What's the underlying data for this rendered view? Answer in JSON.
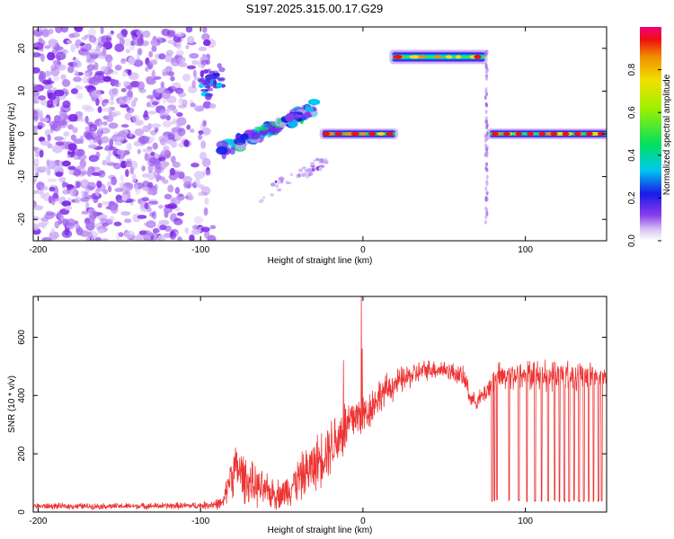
{
  "title": "S197.2025.315.00.17.G29",
  "chart_data": [
    {
      "id": "spectrogram",
      "type": "heatmap",
      "xlabel": "Height of straight line (km)",
      "ylabel": "Frequency (Hz)",
      "xlim": [
        -203,
        150
      ],
      "ylim": [
        -25,
        25
      ],
      "xticks": [
        -200,
        -100,
        0,
        100
      ],
      "xtick_labels": [
        "-200",
        "-100",
        "0",
        "100"
      ],
      "yticks": [
        -20,
        -10,
        0,
        10,
        20
      ],
      "ytick_labels": [
        "-20",
        "-10",
        "0",
        "10",
        "20"
      ],
      "colorbar": {
        "label": "Normalized spectral amplitude",
        "range": [
          0,
          1
        ],
        "ticks": [
          0.0,
          0.2,
          0.4,
          0.6,
          0.8
        ],
        "tick_labels": [
          "0.0",
          "0.2",
          "0.4",
          "0.6",
          "0.8"
        ]
      },
      "features": [
        {
          "name": "noise-scatter",
          "x": [
            -203,
            -92
          ],
          "freq": [
            -25,
            25
          ],
          "amplitude": 0.12
        },
        {
          "name": "cluster-upper",
          "x": [
            -100,
            -86
          ],
          "freq": [
            10,
            16
          ],
          "amplitude": 0.35
        },
        {
          "name": "descending-blobs",
          "x": [
            -88,
            -30
          ],
          "freq": [
            -6,
            8
          ],
          "amplitude": 0.5
        },
        {
          "name": "faint-tail-lower",
          "x": [
            -65,
            -22
          ],
          "freq": [
            -15,
            -6
          ],
          "amplitude": 0.15
        },
        {
          "name": "low-band",
          "x": [
            -25,
            20
          ],
          "freq": 0,
          "amplitude": 0.9
        },
        {
          "name": "high-band",
          "x": [
            18,
            75
          ],
          "freq": 18,
          "amplitude": 0.95
        },
        {
          "name": "vertical-streak",
          "x": [
            76,
            77
          ],
          "freq": [
            -23,
            20
          ],
          "amplitude": 0.12
        },
        {
          "name": "right-band",
          "x": [
            78,
            150
          ],
          "freq": 0,
          "amplitude": 0.95
        }
      ]
    },
    {
      "id": "snr",
      "type": "line",
      "xlabel": "Height of straight line (km)",
      "ylabel": "SNR (10 * v/v)",
      "xlim": [
        -203,
        150
      ],
      "ylim": [
        0,
        740
      ],
      "xticks": [
        -200,
        -100,
        0,
        100
      ],
      "xtick_labels": [
        "-200",
        "-100",
        "0",
        "100"
      ],
      "yticks": [
        0,
        200,
        400,
        600
      ],
      "ytick_labels": [
        "0",
        "200",
        "400",
        "600"
      ],
      "color": "#ee3333",
      "envelope": {
        "x": [
          -203,
          -150,
          -100,
          -86,
          -82,
          -78,
          -70,
          -60,
          -50,
          -40,
          -30,
          -20,
          -10,
          -5,
          0,
          5,
          10,
          20,
          30,
          40,
          50,
          60,
          64,
          66,
          70,
          74,
          78,
          80,
          82,
          84,
          90,
          100,
          110,
          120,
          130,
          140,
          150
        ],
        "center": [
          20,
          20,
          22,
          30,
          120,
          150,
          100,
          70,
          60,
          110,
          160,
          230,
          290,
          330,
          330,
          360,
          400,
          440,
          470,
          490,
          490,
          470,
          440,
          390,
          380,
          400,
          430,
          460,
          460,
          460,
          470,
          470,
          470,
          470,
          470,
          470,
          460
        ],
        "spread": [
          12,
          12,
          14,
          25,
          80,
          110,
          90,
          70,
          60,
          90,
          110,
          120,
          130,
          100,
          90,
          80,
          70,
          60,
          50,
          40,
          40,
          40,
          50,
          30,
          30,
          40,
          50,
          60,
          70,
          60,
          60,
          60,
          60,
          60,
          60,
          60,
          50
        ]
      },
      "spikes": [
        {
          "x": -12,
          "y": 520
        },
        {
          "x": -1,
          "y": 740
        },
        {
          "x": -0.5,
          "y": 560
        }
      ],
      "dropouts": {
        "x": [
          79.5,
          81,
          82.5,
          90,
          96,
          101,
          106,
          110,
          114,
          118,
          121,
          124,
          127,
          130,
          133,
          136,
          139,
          142,
          145,
          147
        ],
        "depth": 35
      }
    }
  ]
}
